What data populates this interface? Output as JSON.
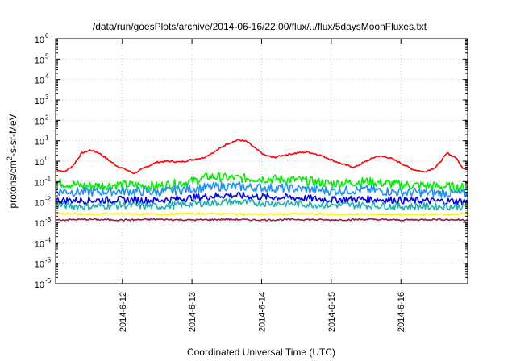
{
  "chart_data": {
    "type": "line",
    "title": "/data/run/goesPlots/archive/2014-06-16/22:00/flux/../flux/5daysMoonFluxes.txt",
    "xlabel": "Coordinated Universal Time (UTC)",
    "ylabel": {
      "prefix": "protons/cm",
      "sup": "2",
      "suffix": "-s-sr-MeV"
    },
    "x_range_days": [
      2014.0611,
      2014.0617
    ],
    "xlim": [
      "2014-06-11T01:00",
      "2014-06-16T23:00"
    ],
    "ylim": [
      1e-06,
      1000000.0
    ],
    "y_scale": "log",
    "grid": true,
    "legend": "none",
    "x_ticks": [
      {
        "value": "2014-06-12T00:00",
        "label": "2014-6-12"
      },
      {
        "value": "2014-06-13T00:00",
        "label": "2014-6-13"
      },
      {
        "value": "2014-06-14T00:00",
        "label": "2014-6-14"
      },
      {
        "value": "2014-06-15T00:00",
        "label": "2014-6-15"
      },
      {
        "value": "2014-06-16T00:00",
        "label": "2014-6-16"
      }
    ],
    "y_ticks": [
      {
        "value": 1000000.0,
        "base": "10",
        "exp": "6"
      },
      {
        "value": 100000.0,
        "base": "10",
        "exp": "5"
      },
      {
        "value": 10000.0,
        "base": "10",
        "exp": "4"
      },
      {
        "value": 1000.0,
        "base": "10",
        "exp": "3"
      },
      {
        "value": 100.0,
        "base": "10",
        "exp": "2"
      },
      {
        "value": 10.0,
        "base": "10",
        "exp": "1"
      },
      {
        "value": 1.0,
        "base": "10",
        "exp": "0"
      },
      {
        "value": 0.1,
        "base": "10",
        "exp": "-1"
      },
      {
        "value": 0.01,
        "base": "10",
        "exp": "-2"
      },
      {
        "value": 0.001,
        "base": "10",
        "exp": "-3"
      },
      {
        "value": 0.0001,
        "base": "10",
        "exp": "-4"
      },
      {
        "value": 1e-05,
        "base": "10",
        "exp": "-5"
      },
      {
        "value": 1e-06,
        "base": "10",
        "exp": "-6"
      }
    ],
    "series": [
      {
        "color": "#ff0000",
        "values": [
          [
            "2014-06-11T01:00",
            0.4
          ],
          [
            "2014-06-11T04:00",
            0.3
          ],
          [
            "2014-06-11T07:00",
            0.6
          ],
          [
            "2014-06-11T10:00",
            2.5
          ],
          [
            "2014-06-11T13:00",
            3.5
          ],
          [
            "2014-06-11T16:00",
            2.5
          ],
          [
            "2014-06-11T19:00",
            1.2
          ],
          [
            "2014-06-11T22:00",
            0.6
          ],
          [
            "2014-06-12T01:00",
            0.4
          ],
          [
            "2014-06-12T04:00",
            0.25
          ],
          [
            "2014-06-12T08:00",
            0.5
          ],
          [
            "2014-06-12T12:00",
            0.9
          ],
          [
            "2014-06-12T16:00",
            1.0
          ],
          [
            "2014-06-12T20:00",
            0.9
          ],
          [
            "2014-06-13T00:00",
            1.2
          ],
          [
            "2014-06-13T04:00",
            1.5
          ],
          [
            "2014-06-13T08:00",
            3.0
          ],
          [
            "2014-06-13T12:00",
            7.0
          ],
          [
            "2014-06-13T16:00",
            11.0
          ],
          [
            "2014-06-13T19:00",
            9.0
          ],
          [
            "2014-06-13T22:00",
            4.0
          ],
          [
            "2014-06-14T01:00",
            2.0
          ],
          [
            "2014-06-14T04:00",
            1.5
          ],
          [
            "2014-06-14T08:00",
            2.0
          ],
          [
            "2014-06-14T12:00",
            2.5
          ],
          [
            "2014-06-14T16:00",
            2.8
          ],
          [
            "2014-06-14T20:00",
            2.0
          ],
          [
            "2014-06-15T00:00",
            1.2
          ],
          [
            "2014-06-15T04:00",
            0.7
          ],
          [
            "2014-06-15T08:00",
            0.5
          ],
          [
            "2014-06-15T12:00",
            1.0
          ],
          [
            "2014-06-15T16:00",
            1.8
          ],
          [
            "2014-06-15T20:00",
            1.5
          ],
          [
            "2014-06-16T00:00",
            0.8
          ],
          [
            "2014-06-16T04:00",
            0.4
          ],
          [
            "2014-06-16T08:00",
            0.3
          ],
          [
            "2014-06-16T12:00",
            0.5
          ],
          [
            "2014-06-16T16:00",
            2.5
          ],
          [
            "2014-06-16T19:00",
            1.5
          ],
          [
            "2014-06-16T21:00",
            0.5
          ],
          [
            "2014-06-16T23:00",
            0.4
          ]
        ]
      },
      {
        "color": "#00ee00",
        "values": [
          [
            "2014-06-11T01:00",
            0.09
          ],
          [
            "2014-06-11T12:00",
            0.06
          ],
          [
            "2014-06-12T00:00",
            0.07
          ],
          [
            "2014-06-12T12:00",
            0.06
          ],
          [
            "2014-06-13T00:00",
            0.1
          ],
          [
            "2014-06-13T06:00",
            0.18
          ],
          [
            "2014-06-13T12:00",
            0.15
          ],
          [
            "2014-06-14T00:00",
            0.14
          ],
          [
            "2014-06-14T12:00",
            0.12
          ],
          [
            "2014-06-15T00:00",
            0.08
          ],
          [
            "2014-06-15T12:00",
            0.1
          ],
          [
            "2014-06-16T00:00",
            0.07
          ],
          [
            "2014-06-16T12:00",
            0.06
          ],
          [
            "2014-06-16T23:00",
            0.05
          ]
        ]
      },
      {
        "color": "#1e90ff",
        "values": [
          [
            "2014-06-11T01:00",
            0.035
          ],
          [
            "2014-06-11T12:00",
            0.03
          ],
          [
            "2014-06-12T00:00",
            0.035
          ],
          [
            "2014-06-12T12:00",
            0.03
          ],
          [
            "2014-06-13T00:00",
            0.045
          ],
          [
            "2014-06-13T12:00",
            0.06
          ],
          [
            "2014-06-14T00:00",
            0.05
          ],
          [
            "2014-06-14T12:00",
            0.045
          ],
          [
            "2014-06-15T00:00",
            0.035
          ],
          [
            "2014-06-15T12:00",
            0.04
          ],
          [
            "2014-06-16T00:00",
            0.03
          ],
          [
            "2014-06-16T12:00",
            0.028
          ],
          [
            "2014-06-16T23:00",
            0.025
          ]
        ]
      },
      {
        "color": "#0000ff",
        "values": [
          [
            "2014-06-11T01:00",
            0.012
          ],
          [
            "2014-06-11T12:00",
            0.012
          ],
          [
            "2014-06-12T00:00",
            0.013
          ],
          [
            "2014-06-12T12:00",
            0.012
          ],
          [
            "2014-06-13T00:00",
            0.016
          ],
          [
            "2014-06-13T12:00",
            0.022
          ],
          [
            "2014-06-14T00:00",
            0.018
          ],
          [
            "2014-06-14T12:00",
            0.016
          ],
          [
            "2014-06-15T00:00",
            0.013
          ],
          [
            "2014-06-15T12:00",
            0.014
          ],
          [
            "2014-06-16T00:00",
            0.012
          ],
          [
            "2014-06-16T12:00",
            0.011
          ],
          [
            "2014-06-16T23:00",
            0.011
          ]
        ]
      },
      {
        "color": "#20b2aa",
        "values": [
          [
            "2014-06-11T01:00",
            0.007
          ],
          [
            "2014-06-11T12:00",
            0.006
          ],
          [
            "2014-06-12T00:00",
            0.007
          ],
          [
            "2014-06-12T12:00",
            0.006
          ],
          [
            "2014-06-13T00:00",
            0.008
          ],
          [
            "2014-06-13T12:00",
            0.01
          ],
          [
            "2014-06-14T00:00",
            0.009
          ],
          [
            "2014-06-14T12:00",
            0.008
          ],
          [
            "2014-06-15T00:00",
            0.007
          ],
          [
            "2014-06-15T12:00",
            0.007
          ],
          [
            "2014-06-16T00:00",
            0.006
          ],
          [
            "2014-06-16T12:00",
            0.006
          ],
          [
            "2014-06-16T23:00",
            0.006
          ]
        ]
      },
      {
        "color": "#ffee00",
        "values": [
          [
            "2014-06-11T01:00",
            0.0028
          ],
          [
            "2014-06-11T12:00",
            0.0025
          ],
          [
            "2014-06-12T00:00",
            0.0026
          ],
          [
            "2014-06-12T12:00",
            0.0025
          ],
          [
            "2014-06-13T00:00",
            0.0027
          ],
          [
            "2014-06-13T12:00",
            0.0026
          ],
          [
            "2014-06-14T00:00",
            0.0025
          ],
          [
            "2014-06-14T12:00",
            0.0026
          ],
          [
            "2014-06-15T00:00",
            0.0025
          ],
          [
            "2014-06-15T12:00",
            0.0025
          ],
          [
            "2014-06-16T00:00",
            0.0024
          ],
          [
            "2014-06-16T12:00",
            0.0025
          ],
          [
            "2014-06-16T23:00",
            0.0025
          ]
        ]
      },
      {
        "color": "#8b2252",
        "values": [
          [
            "2014-06-11T01:00",
            0.0013
          ],
          [
            "2014-06-11T12:00",
            0.0014
          ],
          [
            "2014-06-12T00:00",
            0.0013
          ],
          [
            "2014-06-12T12:00",
            0.0014
          ],
          [
            "2014-06-13T00:00",
            0.0013
          ],
          [
            "2014-06-13T12:00",
            0.0014
          ],
          [
            "2014-06-14T00:00",
            0.0013
          ],
          [
            "2014-06-14T12:00",
            0.0014
          ],
          [
            "2014-06-15T00:00",
            0.0013
          ],
          [
            "2014-06-15T12:00",
            0.0014
          ],
          [
            "2014-06-16T00:00",
            0.0013
          ],
          [
            "2014-06-16T12:00",
            0.0014
          ],
          [
            "2014-06-16T23:00",
            0.0013
          ]
        ]
      }
    ]
  }
}
